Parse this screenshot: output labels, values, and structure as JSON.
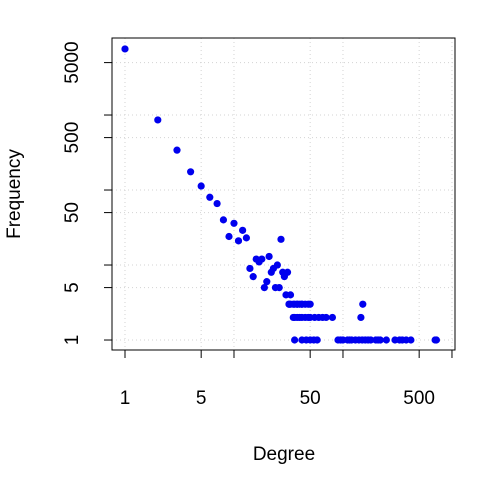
{
  "chart_data": {
    "type": "scatter",
    "xlabel": "Degree",
    "ylabel": "Frequency",
    "xlog": true,
    "ylog": true,
    "grid": true,
    "color": "#0000ee",
    "xlim": [
      0.76,
      1066
    ],
    "ylim": [
      0.736,
      10640
    ],
    "xticks": [
      1,
      5,
      50,
      500
    ],
    "xticks_minor": [
      10,
      100,
      1000
    ],
    "yticks": [
      1,
      5,
      50,
      500,
      5000
    ],
    "yticks_minor": [
      10,
      100,
      1000
    ],
    "x": [
      1,
      2,
      3,
      4,
      5,
      6,
      7,
      8,
      9,
      10,
      11,
      12,
      13,
      14,
      15,
      16,
      17,
      18,
      19,
      20,
      21,
      22,
      23,
      24,
      25,
      26,
      27,
      28,
      29,
      30,
      31,
      32,
      33,
      35,
      36,
      38,
      40,
      42,
      45,
      48,
      50,
      55,
      60,
      65,
      70,
      80,
      36,
      38,
      40,
      42,
      45,
      50,
      32,
      33,
      35,
      38,
      42,
      48,
      36,
      42,
      46,
      50,
      54,
      58,
      90,
      95,
      100,
      110,
      115,
      120,
      130,
      140,
      150,
      160,
      170,
      180,
      200,
      210,
      220,
      250,
      300,
      330,
      350,
      380,
      420,
      700,
      720,
      146,
      152
    ],
    "y": [
      7600,
      860,
      340,
      175,
      113,
      80,
      66,
      40,
      24,
      36,
      21,
      29,
      23,
      9,
      7,
      12,
      11,
      12,
      5,
      6,
      13,
      8,
      9,
      5,
      10,
      5,
      22,
      8,
      7,
      4,
      8,
      3,
      4,
      2,
      2,
      2,
      2,
      2,
      2,
      2,
      2,
      2,
      2,
      2,
      2,
      2,
      3,
      3,
      3,
      3,
      3,
      3,
      3,
      3,
      3,
      3,
      3,
      3,
      1,
      1,
      1,
      1,
      1,
      1,
      1,
      1,
      1,
      1,
      1,
      1,
      1,
      1,
      1,
      1,
      1,
      1,
      1,
      1,
      1,
      1,
      1,
      1,
      1,
      1,
      1,
      1,
      1,
      2,
      3
    ]
  }
}
